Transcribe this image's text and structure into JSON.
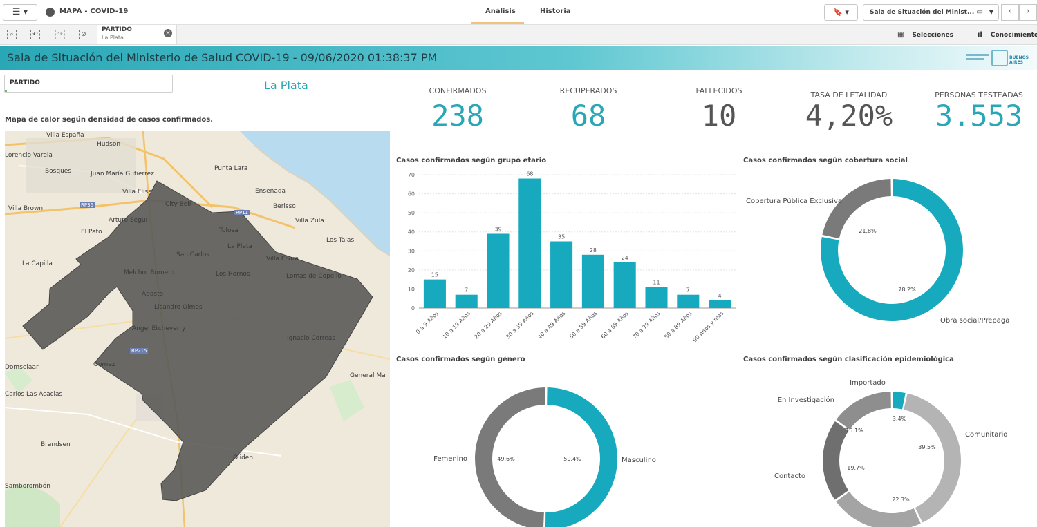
{
  "topbar": {
    "menu_icon": "hamburger-icon",
    "app_title": "MAPA - COVID-19",
    "tabs": [
      {
        "label": "Análisis",
        "active": true
      },
      {
        "label": "Historia",
        "active": false
      }
    ],
    "sheet_name": "Sala de Situación del Minist...",
    "bookmark_icon": "bookmark-icon"
  },
  "toolbar": {
    "selection_field": "PARTIDO",
    "selection_value": "La Plata",
    "selecciones_label": "Selecciones",
    "conocimiento_label": "Conocimiento"
  },
  "header": {
    "title": "Sala de Situación del Ministerio de Salud COVID-19 - 09/06/2020 01:38:37 PM",
    "logo_text": "BUENOS AIRES"
  },
  "filter": {
    "label": "PARTIDO",
    "selected": "La Plata"
  },
  "map": {
    "title": "Mapa de calor según densidad de casos confirmados.",
    "labels": [
      "Villa España",
      "Hudson",
      "Lorencio Varela",
      "Bosques",
      "Juan María Gutierrez",
      "Villa Elisa",
      "Punta Lara",
      "Ensenada",
      "City Bell",
      "Berisso",
      "Villa Zula",
      "Villa Brown",
      "RP36",
      "RP11",
      "Arturo Seguí",
      "Tolosa",
      "El Pato",
      "La Plata",
      "Los Talas",
      "San Carlos",
      "La Capilla",
      "Villa Elvira",
      "Melchor Romero",
      "Los Hornos",
      "Lomas de Copello",
      "Abasto",
      "Lisandro Olmos",
      "Angel Etcheverry",
      "Ignacio Correas",
      "RP215",
      "Domselaar",
      "Gomez",
      "General Ma",
      "Carlos Las Acacias",
      "Brandsen",
      "Oliden",
      "Samborombón"
    ]
  },
  "kpis": [
    {
      "label": "CONFIRMADOS",
      "value": "238",
      "color": "#2aa7b6"
    },
    {
      "label": "RECUPERADOS",
      "value": "68",
      "color": "#2aa7b6"
    },
    {
      "label": "FALLECIDOS",
      "value": "10",
      "color": "#555555"
    },
    {
      "label": "TASA DE LETALIDAD",
      "value": "4,20%",
      "color": "#555555"
    },
    {
      "label": "PERSONAS TESTEADAS",
      "value": "3.553",
      "color": "#2aa7b6"
    }
  ],
  "chart_data": [
    {
      "type": "bar",
      "title": "Casos confirmados según grupo etario",
      "categories": [
        "0 a 9 Años",
        "10 a 19 Años",
        "20 a 29 Años",
        "30 a 39 Años",
        "40 a 49 Años",
        "50 a 59 Años",
        "60 a 69 Años",
        "70 a 79 Años",
        "80 a 89 Años",
        "90 Años y más"
      ],
      "values": [
        15,
        7,
        39,
        68,
        35,
        28,
        24,
        11,
        7,
        4
      ],
      "ylim": [
        0,
        70
      ],
      "yticks": [
        0,
        10,
        20,
        30,
        40,
        50,
        60,
        70
      ],
      "color": "#17a9bd",
      "grid": true
    },
    {
      "type": "pie",
      "title": "Casos confirmados según cobertura social",
      "donut": true,
      "slices": [
        {
          "label": "Obra social/Prepaga",
          "value": 78.2,
          "pct_label": "78.2%",
          "color": "#17a9bd"
        },
        {
          "label": "Cobertura Pública Exclusiva",
          "value": 21.8,
          "pct_label": "21.8%",
          "color": "#7a7a7a"
        }
      ]
    },
    {
      "type": "pie",
      "title": "Casos confirmados según género",
      "donut": true,
      "slices": [
        {
          "label": "Masculino",
          "value": 50.4,
          "pct_label": "50.4%",
          "color": "#17a9bd"
        },
        {
          "label": "Femenino",
          "value": 49.6,
          "pct_label": "49.6%",
          "color": "#7a7a7a"
        }
      ]
    },
    {
      "type": "pie",
      "title": "Casos confirmados según clasificación epidemiológica",
      "donut": true,
      "slices": [
        {
          "label": "Importado",
          "value": 3.4,
          "pct_label": "3.4%",
          "color": "#17a9bd"
        },
        {
          "label": "Comunitario",
          "value": 39.5,
          "pct_label": "39.5%",
          "color": "#b4b4b4"
        },
        {
          "label": "",
          "value": 22.3,
          "pct_label": "22.3%",
          "color": "#a4a4a4"
        },
        {
          "label": "Contacto",
          "value": 19.7,
          "pct_label": "19.7%",
          "color": "#6f6f6f"
        },
        {
          "label": "En Investigación",
          "value": 15.1,
          "pct_label": "15.1%",
          "color": "#8e8e8e"
        }
      ]
    }
  ]
}
